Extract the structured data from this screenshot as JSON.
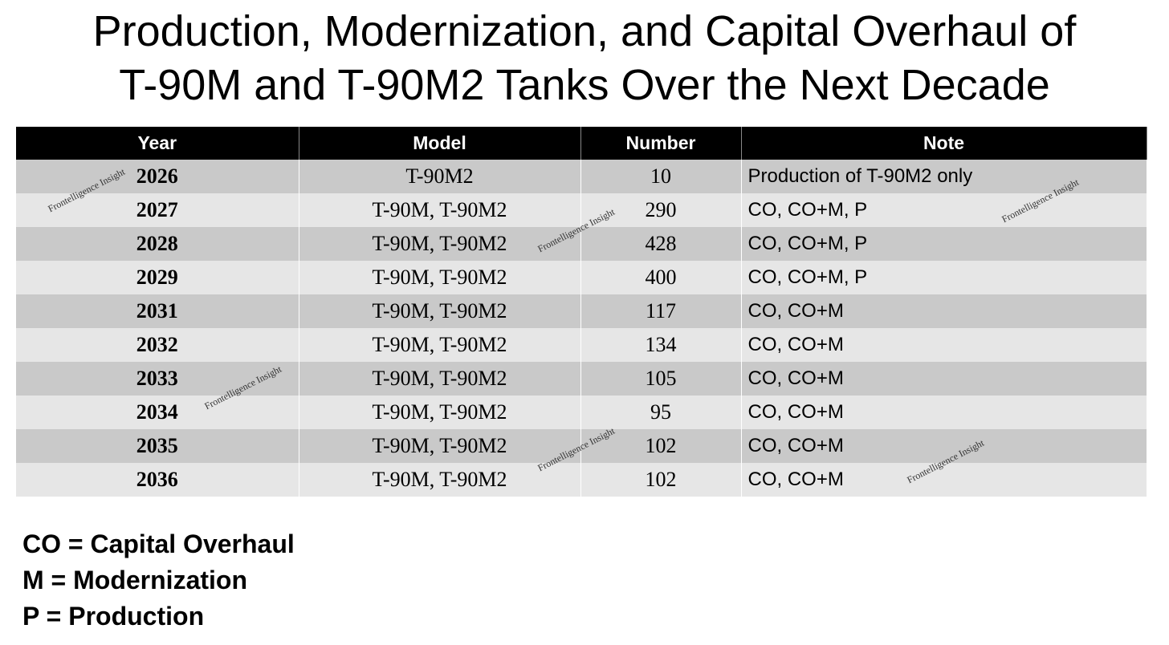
{
  "title_lines": [
    "Production, Modernization, and Capital Overhaul of",
    "T-90M and T-90M2 Tanks Over the Next Decade"
  ],
  "table": {
    "headers": [
      "Year",
      "Model",
      "Number",
      "Note"
    ],
    "rows": [
      [
        2026,
        "T-90M2",
        10,
        "Production of T-90M2 only"
      ],
      [
        2027,
        "T-90M, T-90M2",
        290,
        "CO, CO+M, P"
      ],
      [
        2028,
        "T-90M, T-90M2",
        428,
        "CO, CO+M, P"
      ],
      [
        2029,
        "T-90M, T-90M2",
        400,
        "CO, CO+M, P"
      ],
      [
        2031,
        "T-90M, T-90M2",
        117,
        "CO, CO+M"
      ],
      [
        2032,
        "T-90M, T-90M2",
        134,
        "CO, CO+M"
      ],
      [
        2033,
        "T-90M, T-90M2",
        105,
        "CO, CO+M"
      ],
      [
        2034,
        "T-90M, T-90M2",
        95,
        "CO, CO+M"
      ],
      [
        2035,
        "T-90M, T-90M2",
        102,
        "CO, CO+M"
      ],
      [
        2036,
        "T-90M, T-90M2",
        102,
        "CO, CO+M"
      ]
    ]
  },
  "legend": [
    "CO = Capital Overhaul",
    "M = Modernization",
    "P = Production"
  ],
  "watermark": "Frontelligence Insight"
}
